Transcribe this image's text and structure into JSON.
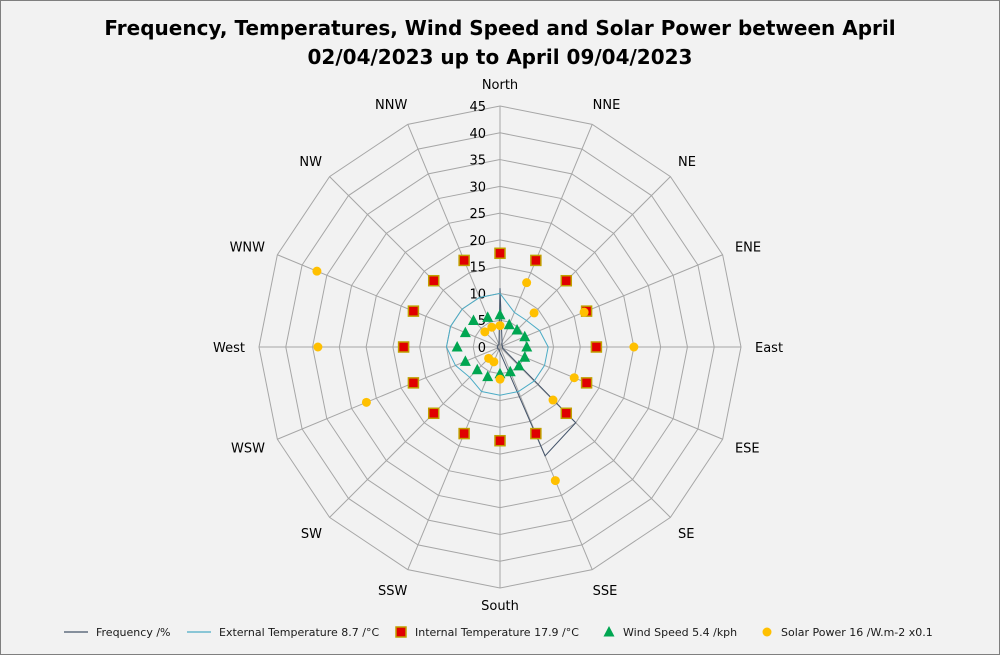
{
  "chart_data": {
    "type": "radar",
    "title": "Frequency, Temperatures, Wind Speed and Solar Power between April\n02/04/2023 up to April 09/04/2023",
    "categories": [
      "North",
      "NNE",
      "NE",
      "ENE",
      "East",
      "ESE",
      "SE",
      "SSE",
      "South",
      "SSW",
      "SW",
      "WSW",
      "West",
      "WNW",
      "NW",
      "NNW"
    ],
    "radial_range": [
      0,
      45
    ],
    "radial_ticks": [
      0,
      5,
      10,
      15,
      20,
      25,
      30,
      35,
      40,
      45
    ],
    "grid": true,
    "legend_position": "bottom",
    "series": [
      {
        "name": "Frequency /%",
        "style": "line",
        "color": "#44546a",
        "values": [
          11,
          1,
          0.5,
          0.5,
          0.5,
          0.5,
          20,
          22,
          1,
          0.5,
          0.5,
          0.5,
          0.5,
          0.5,
          0.5,
          0.5
        ]
      },
      {
        "name": "External Temperature 8.7 /°C",
        "style": "line",
        "color": "#4bacc6",
        "values": [
          10,
          7,
          7,
          8,
          9,
          9,
          9,
          9,
          9,
          9,
          8,
          9,
          10,
          10,
          10,
          10
        ]
      },
      {
        "name": "Internal Temperature 17.9 /°C",
        "style": "square",
        "color": "#e00000",
        "edge": "#c0a000",
        "values": [
          17.5,
          17.5,
          17.5,
          17.5,
          18,
          17.5,
          17.5,
          17.5,
          17.5,
          17.5,
          17.5,
          17.5,
          18,
          17.5,
          17.5,
          17.5
        ]
      },
      {
        "name": "Wind Speed 5.4 /kph",
        "style": "triangle",
        "color": "#00a651",
        "values": [
          6,
          4.5,
          4.5,
          5,
          5,
          5,
          5,
          5,
          5,
          6,
          6,
          7,
          8,
          7,
          7,
          6
        ]
      },
      {
        "name": "Solar Power 16 /W.m-2 x0.1",
        "style": "circle",
        "color": "#ffc000",
        "values": [
          4,
          13,
          9,
          17,
          25,
          15,
          14,
          27,
          6,
          3,
          3,
          27,
          34,
          37,
          4,
          4
        ]
      }
    ]
  }
}
